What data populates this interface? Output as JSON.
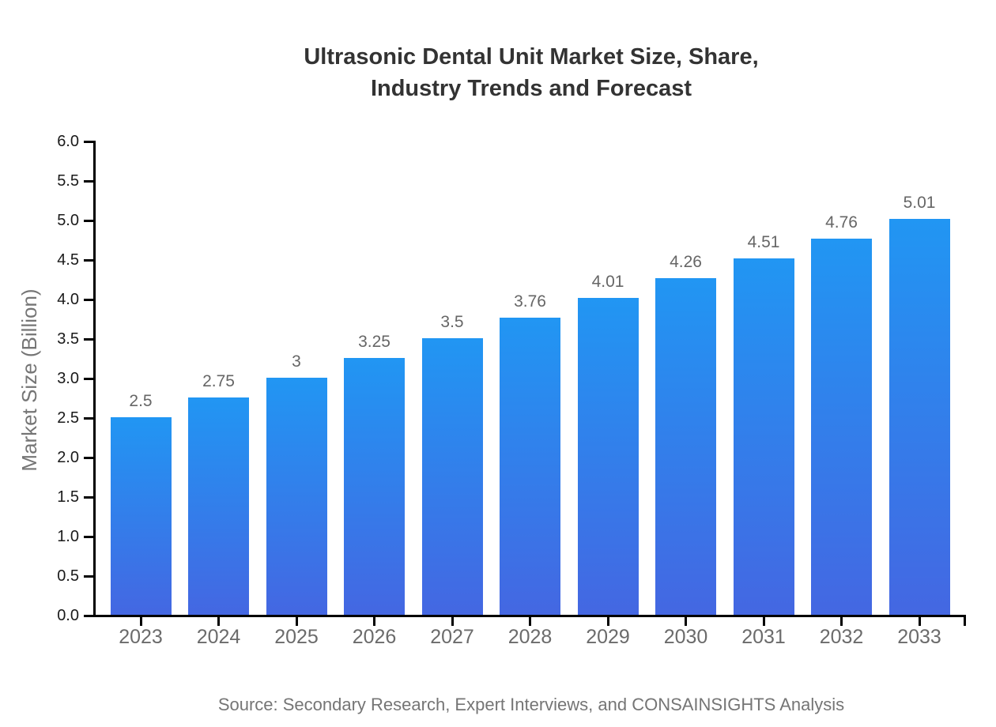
{
  "title": {
    "line1": "Ultrasonic Dental Unit Market Size, Share,",
    "line2": "Industry Trends and Forecast"
  },
  "source": "Source: Secondary Research, Expert Interviews, and CONSAINSIGHTS Analysis",
  "chart_data": {
    "type": "bar",
    "title": "Ultrasonic Dental Unit Market Size, Share, Industry Trends and Forecast",
    "categories": [
      "2023",
      "2024",
      "2025",
      "2026",
      "2027",
      "2028",
      "2029",
      "2030",
      "2031",
      "2032",
      "2033"
    ],
    "values": [
      2.5,
      2.75,
      3,
      3.25,
      3.5,
      3.76,
      4.01,
      4.26,
      4.51,
      4.76,
      5.01
    ],
    "xlabel": "",
    "ylabel": "Market Size (Billion)",
    "ylim": [
      0,
      6
    ],
    "ytick_step": 0.5,
    "ytick_labels": [
      "0.0",
      "0.5",
      "1.0",
      "1.5",
      "2.0",
      "2.5",
      "3.0",
      "3.5",
      "4.0",
      "4.5",
      "5.0",
      "5.5",
      "6.0"
    ],
    "grid": false,
    "legend_position": "none",
    "bar_color_top": "#2196f3",
    "bar_color_bottom": "#4467e2"
  },
  "colors": {
    "background": "#ffffff",
    "title": "#333333",
    "axis": "#000000",
    "tick_label": "#1a1a1a",
    "category_label": "#6b6b6b",
    "value_label": "#666666",
    "axis_title": "#757575",
    "source": "#757575"
  }
}
